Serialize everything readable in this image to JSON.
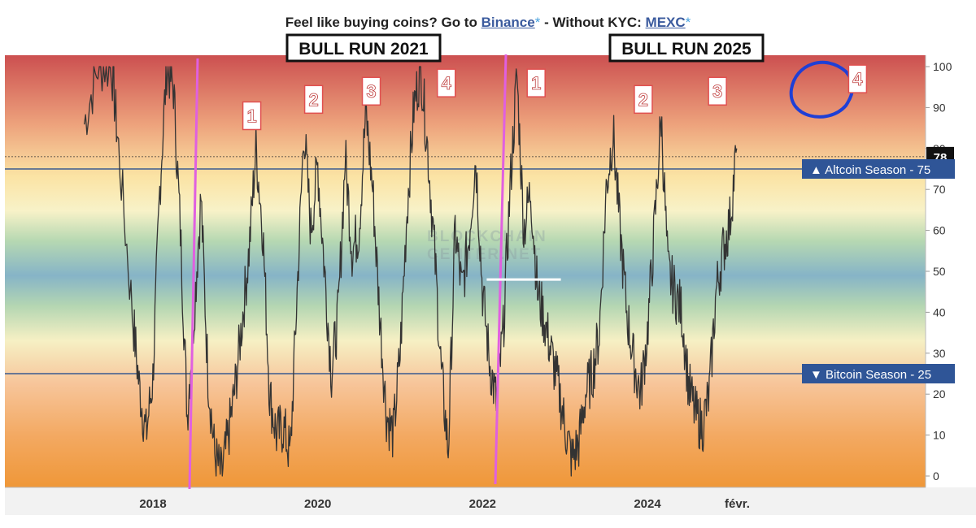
{
  "header": {
    "prefix": "Feel like buying coins? Go to ",
    "link1": "Binance",
    "star1": "*",
    "middle": " - Without KYC: ",
    "link2": "MEXC",
    "star2": "*"
  },
  "watermark": [
    "BLOCKCHAIN",
    "CENTER.NET"
  ],
  "annotations": {
    "bull_run_1": "BULL RUN 2021",
    "bull_run_2": "BULL RUN 2025",
    "numbers": [
      {
        "label": "1",
        "x": 2019.2,
        "y": 88
      },
      {
        "label": "2",
        "x": 2019.95,
        "y": 92
      },
      {
        "label": "3",
        "x": 2020.65,
        "y": 94
      },
      {
        "label": "4",
        "x": 2021.56,
        "y": 96
      },
      {
        "label": "1",
        "x": 2022.65,
        "y": 96
      },
      {
        "label": "2",
        "x": 2023.95,
        "y": 92
      },
      {
        "label": "3",
        "x": 2024.85,
        "y": 94
      },
      {
        "label": "4",
        "x": 2026.55,
        "y": 97
      }
    ],
    "colors": {
      "vertical_lines": "#e060e0",
      "circle": "#1f3fd6",
      "reference": "#3a5a90",
      "series": "#333333"
    }
  },
  "chart_data": {
    "type": "line",
    "series": [
      {
        "values": [
          [
            "2017-03",
            86
          ],
          [
            "2017-05",
            100
          ],
          [
            "2017-07",
            100
          ],
          [
            "2017-08",
            80
          ],
          [
            "2017-10",
            40
          ],
          [
            "2017-11",
            22
          ],
          [
            "2017-12",
            10
          ],
          [
            "2018-01",
            24
          ],
          [
            "2018-02",
            70
          ],
          [
            "2018-03",
            100
          ],
          [
            "2018-04",
            95
          ],
          [
            "2018-05",
            60
          ],
          [
            "2018-06",
            15
          ],
          [
            "2018-07",
            40
          ],
          [
            "2018-08",
            68
          ],
          [
            "2018-09",
            25
          ],
          [
            "2018-10",
            5
          ],
          [
            "2018-11",
            0
          ],
          [
            "2018-12",
            10
          ],
          [
            "2019-01",
            22
          ],
          [
            "2019-02",
            38
          ],
          [
            "2019-03",
            55
          ],
          [
            "2019-04",
            80
          ],
          [
            "2019-05",
            60
          ],
          [
            "2019-06",
            20
          ],
          [
            "2019-07",
            10
          ],
          [
            "2019-08",
            12
          ],
          [
            "2019-09",
            5
          ],
          [
            "2019-10",
            45
          ],
          [
            "2019-11",
            85
          ],
          [
            "2019-12",
            60
          ],
          [
            "2020-01",
            76
          ],
          [
            "2020-02",
            50
          ],
          [
            "2020-03",
            25
          ],
          [
            "2020-04",
            40
          ],
          [
            "2020-05",
            78
          ],
          [
            "2020-06",
            55
          ],
          [
            "2020-07",
            60
          ],
          [
            "2020-08",
            89
          ],
          [
            "2020-09",
            70
          ],
          [
            "2020-10",
            40
          ],
          [
            "2020-11",
            15
          ],
          [
            "2020-12",
            10
          ],
          [
            "2021-01",
            30
          ],
          [
            "2021-02",
            65
          ],
          [
            "2021-03",
            90
          ],
          [
            "2021-04",
            100
          ],
          [
            "2021-05",
            80
          ],
          [
            "2021-06",
            55
          ],
          [
            "2021-07",
            25
          ],
          [
            "2021-08",
            6
          ],
          [
            "2021-09",
            60
          ],
          [
            "2021-10",
            45
          ],
          [
            "2021-11",
            58
          ],
          [
            "2021-12",
            78
          ],
          [
            "2022-01",
            45
          ],
          [
            "2022-02",
            28
          ],
          [
            "2022-03",
            18
          ],
          [
            "2022-04",
            35
          ],
          [
            "2022-05",
            70
          ],
          [
            "2022-06",
            98
          ],
          [
            "2022-07",
            60
          ],
          [
            "2022-08",
            70
          ],
          [
            "2022-09",
            45
          ],
          [
            "2022-10",
            38
          ],
          [
            "2022-11",
            30
          ],
          [
            "2022-12",
            22
          ],
          [
            "2023-01",
            12
          ],
          [
            "2023-02",
            4
          ],
          [
            "2023-03",
            8
          ],
          [
            "2023-04",
            20
          ],
          [
            "2023-05",
            25
          ],
          [
            "2023-06",
            35
          ],
          [
            "2023-07",
            70
          ],
          [
            "2023-08",
            84
          ],
          [
            "2023-09",
            60
          ],
          [
            "2023-10",
            40
          ],
          [
            "2023-11",
            28
          ],
          [
            "2023-12",
            20
          ],
          [
            "2024-01",
            35
          ],
          [
            "2024-02",
            60
          ],
          [
            "2024-03",
            88
          ],
          [
            "2024-04",
            50
          ],
          [
            "2024-05",
            45
          ],
          [
            "2024-06",
            40
          ],
          [
            "2024-07",
            22
          ],
          [
            "2024-08",
            15
          ],
          [
            "2024-09",
            12
          ],
          [
            "2024-10",
            20
          ],
          [
            "2024-11",
            45
          ],
          [
            "2024-12",
            55
          ],
          [
            "2025-01",
            62
          ],
          [
            "2025-02",
            80
          ]
        ]
      }
    ],
    "x_ticks": [
      "2018",
      "2020",
      "2022",
      "2024",
      "févr."
    ],
    "y_ticks": [
      0,
      10,
      20,
      30,
      40,
      50,
      60,
      70,
      80,
      90,
      100
    ],
    "ylim": [
      -3,
      103
    ],
    "reference_lines": [
      {
        "label": "▲ Altcoin Season",
        "value": 75
      },
      {
        "label": "▼ Bitcoin Season",
        "value": 25
      }
    ],
    "current_value": 78,
    "extra_segment": {
      "x": [
        2022.05,
        2022.95
      ],
      "y": 48
    },
    "grid": false,
    "legend": "none"
  }
}
